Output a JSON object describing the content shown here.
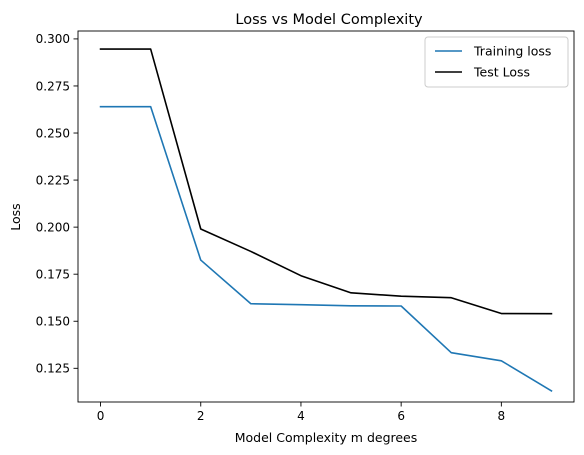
{
  "chart_data": {
    "type": "line",
    "title": "Loss vs Model Complexity",
    "xlabel": "Model Complexity m degrees",
    "ylabel": "Loss",
    "xlim": [
      -0.45,
      9.45
    ],
    "ylim": [
      0.1071,
      0.3042
    ],
    "xticks": [
      0,
      2,
      4,
      6,
      8
    ],
    "xtick_labels": [
      "0",
      "2",
      "4",
      "6",
      "8"
    ],
    "yticks": [
      0.125,
      0.15,
      0.175,
      0.2,
      0.225,
      0.25,
      0.275,
      0.3
    ],
    "ytick_labels": [
      "0.125",
      "0.150",
      "0.175",
      "0.200",
      "0.225",
      "0.250",
      "0.275",
      "0.300"
    ],
    "grid": false,
    "legend_position": "top-right",
    "x": [
      0,
      1,
      2,
      3,
      4,
      5,
      6,
      7,
      8,
      9
    ],
    "series": [
      {
        "name": "Training loss",
        "color": "#1f77b4",
        "values": [
          0.264,
          0.264,
          0.1825,
          0.1593,
          0.1588,
          0.1582,
          0.1581,
          0.1333,
          0.129,
          0.113
        ]
      },
      {
        "name": "Test Loss",
        "color": "#000000",
        "values": [
          0.2946,
          0.2946,
          0.199,
          0.1871,
          0.1742,
          0.1651,
          0.1633,
          0.1625,
          0.1541,
          0.154
        ]
      }
    ]
  }
}
